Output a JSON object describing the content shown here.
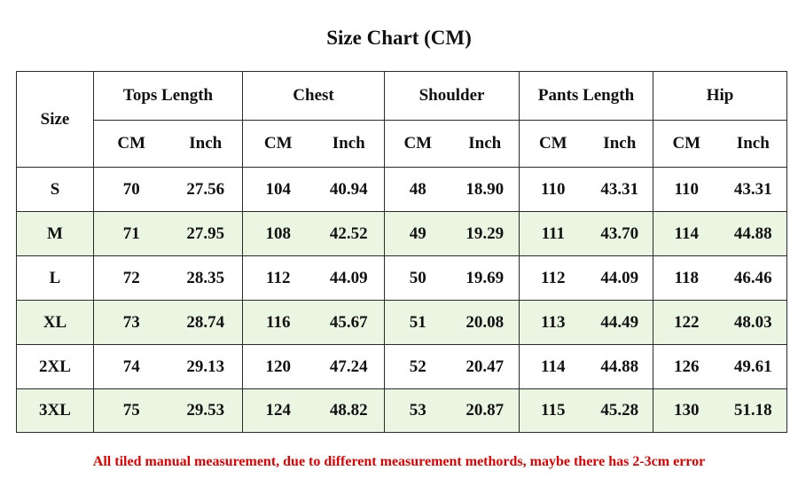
{
  "title": "Size Chart (CM)",
  "table": {
    "size_header": "Size",
    "groups": [
      "Tops Length",
      "Chest",
      "Shoulder",
      "Pants Length",
      "Hip"
    ],
    "units": [
      "CM",
      "Inch",
      "CM",
      "Inch",
      "CM",
      "Inch",
      "CM",
      "Inch",
      "CM",
      "Inch"
    ],
    "rows": [
      [
        "S",
        "70",
        "27.56",
        "104",
        "40.94",
        "48",
        "18.90",
        "110",
        "43.31",
        "110",
        "43.31"
      ],
      [
        "M",
        "71",
        "27.95",
        "108",
        "42.52",
        "49",
        "19.29",
        "111",
        "43.70",
        "114",
        "44.88"
      ],
      [
        "L",
        "72",
        "28.35",
        "112",
        "44.09",
        "50",
        "19.69",
        "112",
        "44.09",
        "118",
        "46.46"
      ],
      [
        "XL",
        "73",
        "28.74",
        "116",
        "45.67",
        "51",
        "20.08",
        "113",
        "44.49",
        "122",
        "48.03"
      ],
      [
        "2XL",
        "74",
        "29.13",
        "120",
        "47.24",
        "52",
        "20.47",
        "114",
        "44.88",
        "126",
        "49.61"
      ],
      [
        "3XL",
        "75",
        "29.53",
        "124",
        "48.82",
        "53",
        "20.87",
        "115",
        "45.28",
        "130",
        "51.18"
      ]
    ]
  },
  "note": "All tiled manual measurement, due to different measurement methords, maybe there has 2-3cm error"
}
